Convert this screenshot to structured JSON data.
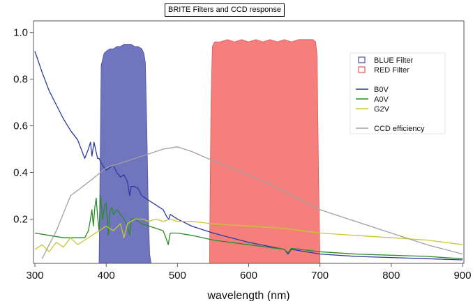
{
  "chart_data": {
    "type": "line",
    "title": "BRITE Filters and CCD response",
    "xlabel": "wavelength (nm)",
    "ylabel": "",
    "xlim": [
      298,
      902
    ],
    "ylim": [
      0.01,
      1.05
    ],
    "xticks": [
      300,
      400,
      500,
      600,
      700,
      800,
      900
    ],
    "yticks": [
      0.2,
      0.4,
      0.6,
      0.8,
      1.0
    ],
    "ytick_labels": [
      "0.2",
      "0.4",
      "0.6",
      "0.8",
      "1.0"
    ],
    "grid": false,
    "legend_position": "top-right",
    "filters": [
      {
        "name": "BLUE Filter",
        "fill": "#7075be",
        "edge": "#4a50a8",
        "x": [
          390,
          393,
          397,
          400,
          405,
          410,
          415,
          420,
          425,
          430,
          435,
          440,
          445,
          450,
          453,
          455,
          457,
          459,
          461,
          463
        ],
        "y": [
          0.01,
          0.86,
          0.91,
          0.92,
          0.93,
          0.93,
          0.94,
          0.94,
          0.95,
          0.95,
          0.95,
          0.94,
          0.94,
          0.93,
          0.91,
          0.87,
          0.6,
          0.25,
          0.05,
          0.01
        ]
      },
      {
        "name": "RED Filter",
        "fill": "#f47f7c",
        "edge": "#e05858",
        "x": [
          545,
          547,
          549,
          552,
          560,
          570,
          580,
          590,
          600,
          610,
          620,
          630,
          640,
          650,
          660,
          670,
          680,
          690,
          694,
          696,
          698,
          700
        ],
        "y": [
          0.01,
          0.7,
          0.94,
          0.96,
          0.96,
          0.97,
          0.96,
          0.97,
          0.96,
          0.97,
          0.96,
          0.97,
          0.96,
          0.97,
          0.96,
          0.97,
          0.97,
          0.97,
          0.96,
          0.9,
          0.4,
          0.01
        ]
      }
    ],
    "series": [
      {
        "name": "B0V",
        "color": "#2a3aa0",
        "x": [
          300,
          310,
          320,
          330,
          340,
          350,
          360,
          365,
          370,
          375,
          378,
          380,
          383,
          385,
          388,
          390,
          395,
          400,
          405,
          410,
          415,
          420,
          425,
          430,
          433,
          435,
          440,
          445,
          450,
          460,
          470,
          480,
          485,
          488,
          490,
          500,
          520,
          550,
          600,
          650,
          655,
          660,
          700,
          750,
          800,
          850,
          900
        ],
        "y": [
          0.92,
          0.83,
          0.75,
          0.69,
          0.63,
          0.58,
          0.54,
          0.5,
          0.46,
          0.5,
          0.53,
          0.47,
          0.53,
          0.5,
          0.46,
          0.46,
          0.43,
          0.41,
          0.42,
          0.43,
          0.4,
          0.38,
          0.39,
          0.36,
          0.3,
          0.34,
          0.34,
          0.33,
          0.3,
          0.28,
          0.26,
          0.24,
          0.21,
          0.2,
          0.22,
          0.2,
          0.17,
          0.14,
          0.1,
          0.07,
          0.05,
          0.07,
          0.05,
          0.04,
          0.035,
          0.03,
          0.025
        ]
      },
      {
        "name": "A0V",
        "color": "#2a8a2a",
        "x": [
          300,
          320,
          340,
          360,
          370,
          375,
          378,
          380,
          382,
          384,
          386,
          388,
          390,
          392,
          395,
          398,
          400,
          403,
          405,
          408,
          410,
          415,
          420,
          425,
          430,
          433,
          435,
          440,
          445,
          450,
          460,
          470,
          480,
          485,
          487,
          490,
          500,
          520,
          550,
          600,
          650,
          655,
          660,
          700,
          750,
          800,
          850,
          900
        ],
        "y": [
          0.14,
          0.13,
          0.12,
          0.12,
          0.12,
          0.15,
          0.2,
          0.24,
          0.17,
          0.25,
          0.29,
          0.21,
          0.15,
          0.3,
          0.2,
          0.26,
          0.27,
          0.13,
          0.23,
          0.25,
          0.22,
          0.24,
          0.22,
          0.2,
          0.17,
          0.13,
          0.2,
          0.2,
          0.19,
          0.18,
          0.17,
          0.16,
          0.15,
          0.11,
          0.09,
          0.14,
          0.14,
          0.13,
          0.11,
          0.09,
          0.07,
          0.055,
          0.075,
          0.06,
          0.05,
          0.045,
          0.04,
          0.03
        ]
      },
      {
        "name": "G2V",
        "color": "#c8c832",
        "x": [
          300,
          310,
          320,
          330,
          340,
          350,
          360,
          370,
          380,
          390,
          400,
          410,
          420,
          425,
          430,
          435,
          440,
          450,
          460,
          470,
          480,
          490,
          500,
          520,
          550,
          600,
          650,
          700,
          750,
          800,
          850,
          900
        ],
        "y": [
          0.07,
          0.09,
          0.06,
          0.1,
          0.08,
          0.12,
          0.09,
          0.11,
          0.13,
          0.15,
          0.17,
          0.15,
          0.18,
          0.12,
          0.18,
          0.19,
          0.2,
          0.2,
          0.19,
          0.2,
          0.19,
          0.2,
          0.19,
          0.19,
          0.18,
          0.17,
          0.16,
          0.14,
          0.13,
          0.12,
          0.11,
          0.09
        ]
      },
      {
        "name": "CCD efficiency",
        "color": "#a0a0a0",
        "x": [
          310,
          330,
          350,
          380,
          400,
          420,
          450,
          480,
          500,
          520,
          550,
          600,
          650,
          700,
          750,
          800,
          850,
          900
        ],
        "y": [
          0.03,
          0.15,
          0.3,
          0.37,
          0.42,
          0.44,
          0.47,
          0.5,
          0.51,
          0.49,
          0.45,
          0.39,
          0.32,
          0.24,
          0.19,
          0.14,
          0.09,
          0.05
        ]
      }
    ]
  }
}
